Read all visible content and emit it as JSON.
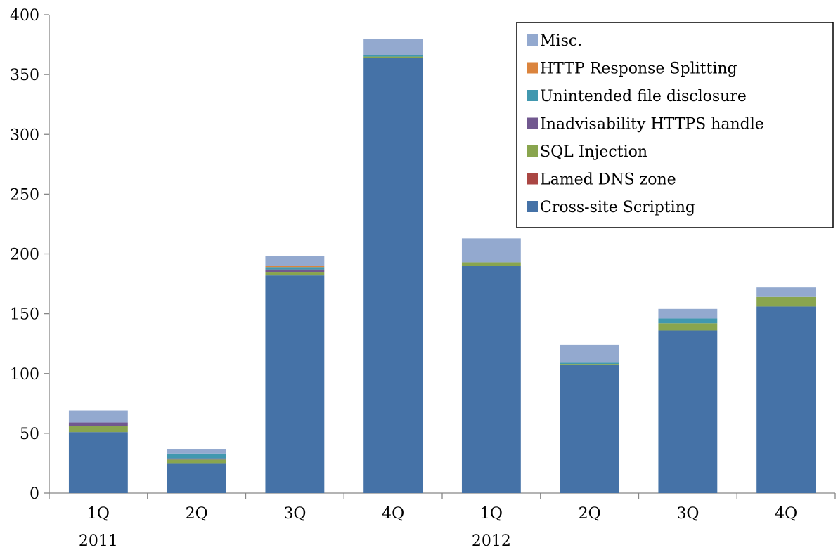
{
  "chart_data": {
    "type": "bar",
    "stacked": true,
    "title": "",
    "xlabel": "",
    "ylabel": "",
    "ylim": [
      0,
      400
    ],
    "yticks": [
      0,
      50,
      100,
      150,
      200,
      250,
      300,
      350,
      400
    ],
    "grid": false,
    "legend_position": "top-right",
    "categories": [
      "1Q",
      "2Q",
      "3Q",
      "4Q",
      "1Q",
      "2Q",
      "3Q",
      "4Q"
    ],
    "year_labels": [
      {
        "label": "2011",
        "category_index": 0
      },
      {
        "label": "2012",
        "category_index": 4
      }
    ],
    "series": [
      {
        "name": "Cross-site Scripting",
        "color": "#4572a7",
        "values": [
          51,
          25,
          182,
          364,
          190,
          107,
          136,
          156
        ]
      },
      {
        "name": "Lamed DNS zone",
        "color": "#aa4643",
        "values": [
          0,
          0,
          0,
          0,
          0,
          0,
          0,
          0
        ]
      },
      {
        "name": "SQL Injection",
        "color": "#89a54e",
        "values": [
          5,
          3,
          3,
          1,
          3,
          1,
          6,
          8
        ]
      },
      {
        "name": "Inadvisability HTTPS handle",
        "color": "#71588f",
        "values": [
          3,
          1,
          2,
          0,
          0,
          0,
          0,
          0
        ]
      },
      {
        "name": "Unintended file disclosure",
        "color": "#4198af",
        "values": [
          0,
          4,
          2,
          1,
          0,
          1,
          4,
          0
        ]
      },
      {
        "name": "HTTP Response Splitting",
        "color": "#db843d",
        "values": [
          0,
          0,
          1,
          0,
          0,
          0,
          0,
          0
        ]
      },
      {
        "name": "Misc.",
        "color": "#93a9cf",
        "values": [
          10,
          4,
          8,
          14,
          20,
          15,
          8,
          8
        ]
      }
    ]
  }
}
